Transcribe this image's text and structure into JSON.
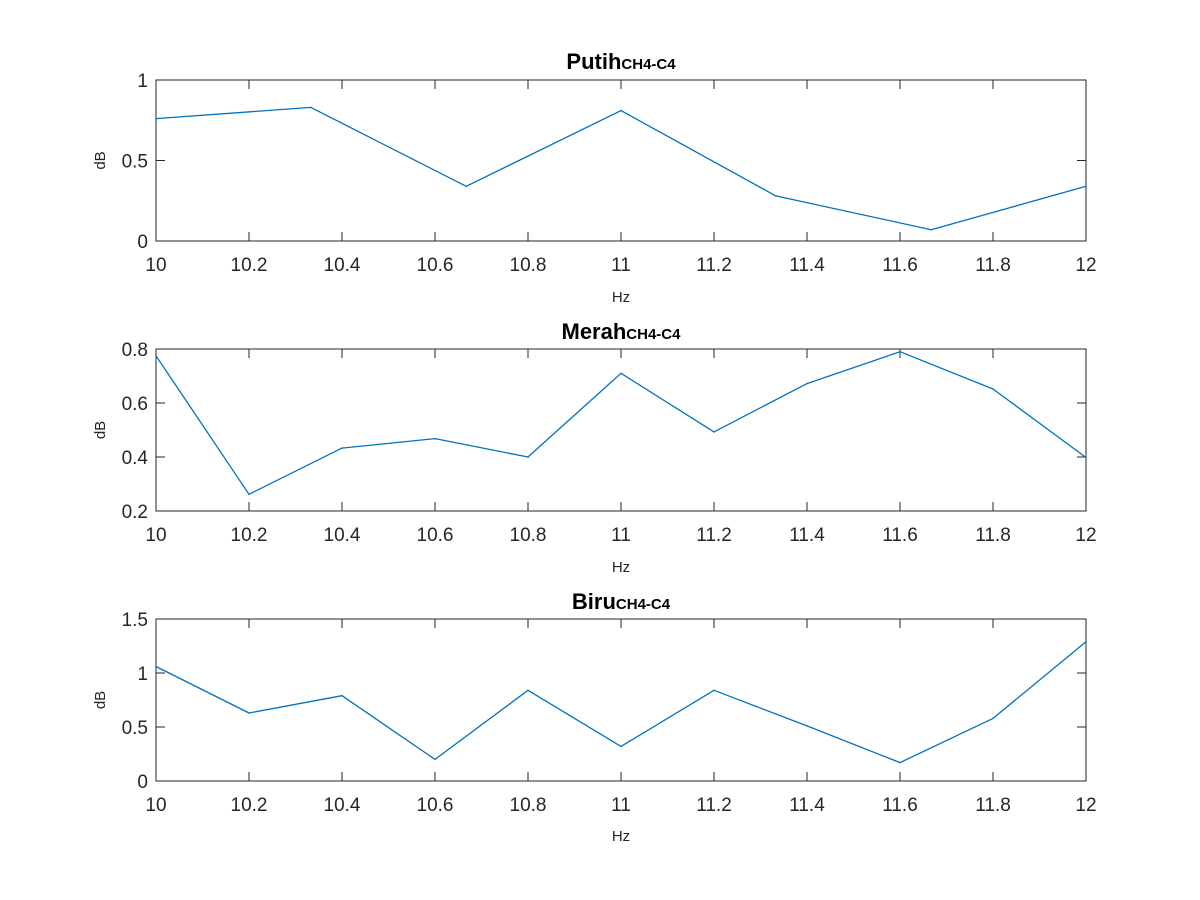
{
  "chart_data": [
    {
      "type": "line",
      "title": "Putih",
      "title_subscript": "CH4-C4",
      "xlabel": "Hz",
      "ylabel": "dB",
      "xlim": [
        10,
        12
      ],
      "ylim": [
        0,
        1
      ],
      "xticks": [
        10,
        10.2,
        10.4,
        10.6,
        10.8,
        11,
        11.2,
        11.4,
        11.6,
        11.8,
        12
      ],
      "xtick_labels": [
        "10",
        "10.2",
        "10.4",
        "10.6",
        "10.8",
        "11",
        "11.2",
        "11.4",
        "11.6",
        "11.8",
        "12"
      ],
      "yticks": [
        0,
        0.5,
        1
      ],
      "ytick_labels": [
        "0",
        "0.5",
        "1"
      ],
      "grid": false,
      "color": "#0072BD",
      "series": [
        {
          "x": [
            10,
            10.333,
            10.667,
            11,
            11.333,
            11.667,
            12
          ],
          "y": [
            0.76,
            0.83,
            0.34,
            0.81,
            0.28,
            0.07,
            0.34
          ]
        }
      ]
    },
    {
      "type": "line",
      "title": "Merah",
      "title_subscript": "CH4-C4",
      "xlabel": "Hz",
      "ylabel": "dB",
      "xlim": [
        10,
        12
      ],
      "ylim": [
        0.2,
        0.8
      ],
      "xticks": [
        10,
        10.2,
        10.4,
        10.6,
        10.8,
        11,
        11.2,
        11.4,
        11.6,
        11.8,
        12
      ],
      "xtick_labels": [
        "10",
        "10.2",
        "10.4",
        "10.6",
        "10.8",
        "11",
        "11.2",
        "11.4",
        "11.6",
        "11.8",
        "12"
      ],
      "yticks": [
        0.2,
        0.4,
        0.6,
        0.8
      ],
      "ytick_labels": [
        "0.2",
        "0.4",
        "0.6",
        "0.8"
      ],
      "grid": false,
      "color": "#0072BD",
      "series": [
        {
          "x": [
            10,
            10.2,
            10.4,
            10.6,
            10.8,
            11,
            11.2,
            11.4,
            11.6,
            11.8,
            12
          ],
          "y": [
            0.775,
            0.262,
            0.433,
            0.468,
            0.4,
            0.71,
            0.493,
            0.672,
            0.79,
            0.652,
            0.398
          ]
        }
      ]
    },
    {
      "type": "line",
      "title": "Biru",
      "title_subscript": "CH4-C4",
      "xlabel": "Hz",
      "ylabel": "dB",
      "xlim": [
        10,
        12
      ],
      "ylim": [
        0,
        1.5
      ],
      "xticks": [
        10,
        10.2,
        10.4,
        10.6,
        10.8,
        11,
        11.2,
        11.4,
        11.6,
        11.8,
        12
      ],
      "xtick_labels": [
        "10",
        "10.2",
        "10.4",
        "10.6",
        "10.8",
        "11",
        "11.2",
        "11.4",
        "11.6",
        "11.8",
        "12"
      ],
      "yticks": [
        0,
        0.5,
        1,
        1.5
      ],
      "ytick_labels": [
        "0",
        "0.5",
        "1",
        "1.5"
      ],
      "grid": false,
      "color": "#0072BD",
      "series": [
        {
          "x": [
            10,
            10.2,
            10.4,
            10.6,
            10.8,
            11,
            11.2,
            11.4,
            11.6,
            11.8,
            12
          ],
          "y": [
            1.06,
            0.63,
            0.79,
            0.2,
            0.84,
            0.32,
            0.84,
            0.51,
            0.17,
            0.58,
            1.29
          ]
        }
      ]
    }
  ]
}
